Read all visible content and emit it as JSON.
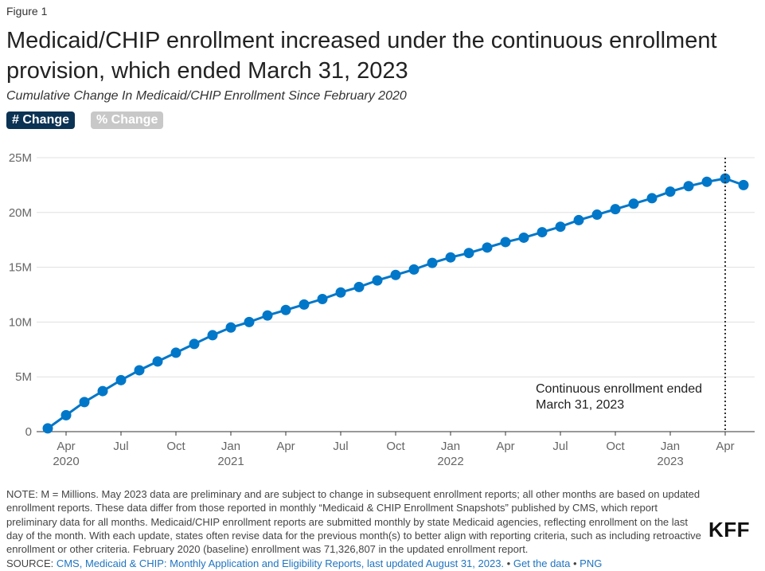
{
  "figure_label": "Figure 1",
  "title": "Medicaid/CHIP enrollment increased under the continuous enrollment provision, which ended March 31, 2023",
  "subtitle": "Cumulative Change In Medicaid/CHIP Enrollment Since February 2020",
  "toggles": {
    "count_label": "# Change",
    "percent_label": "% Change",
    "selected": "count"
  },
  "chart_data": {
    "type": "line",
    "x": [
      "2020-03",
      "2020-04",
      "2020-05",
      "2020-06",
      "2020-07",
      "2020-08",
      "2020-09",
      "2020-10",
      "2020-11",
      "2020-12",
      "2021-01",
      "2021-02",
      "2021-03",
      "2021-04",
      "2021-05",
      "2021-06",
      "2021-07",
      "2021-08",
      "2021-09",
      "2021-10",
      "2021-11",
      "2021-12",
      "2022-01",
      "2022-02",
      "2022-03",
      "2022-04",
      "2022-05",
      "2022-06",
      "2022-07",
      "2022-08",
      "2022-09",
      "2022-10",
      "2022-11",
      "2022-12",
      "2023-01",
      "2023-02",
      "2023-03",
      "2023-04",
      "2023-05"
    ],
    "series": [
      {
        "values": [
          0.3,
          1.5,
          2.7,
          3.7,
          4.7,
          5.6,
          6.4,
          7.2,
          8.0,
          8.8,
          9.5,
          10.0,
          10.6,
          11.1,
          11.6,
          12.1,
          12.7,
          13.2,
          13.8,
          14.3,
          14.8,
          15.4,
          15.9,
          16.3,
          16.8,
          17.3,
          17.7,
          18.2,
          18.7,
          19.3,
          19.8,
          20.3,
          20.8,
          21.3,
          21.9,
          22.4,
          22.8,
          23.1,
          22.5
        ]
      }
    ],
    "y_unit": "M",
    "ylim": [
      0,
      25
    ],
    "y_ticks": [
      "0",
      "5M",
      "10M",
      "15M",
      "20M",
      "25M"
    ],
    "x_ticks": [
      {
        "label": "Apr",
        "year": "2020",
        "x": "2020-04"
      },
      {
        "label": "Jul",
        "year": "",
        "x": "2020-07"
      },
      {
        "label": "Oct",
        "year": "",
        "x": "2020-10"
      },
      {
        "label": "Jan",
        "year": "2021",
        "x": "2021-01"
      },
      {
        "label": "Apr",
        "year": "",
        "x": "2021-04"
      },
      {
        "label": "Jul",
        "year": "",
        "x": "2021-07"
      },
      {
        "label": "Oct",
        "year": "",
        "x": "2021-10"
      },
      {
        "label": "Jan",
        "year": "2022",
        "x": "2022-01"
      },
      {
        "label": "Apr",
        "year": "",
        "x": "2022-04"
      },
      {
        "label": "Jul",
        "year": "",
        "x": "2022-07"
      },
      {
        "label": "Oct",
        "year": "",
        "x": "2022-10"
      },
      {
        "label": "Jan",
        "year": "2023",
        "x": "2023-01"
      },
      {
        "label": "Apr",
        "year": "",
        "x": "2023-04"
      }
    ],
    "annotation": {
      "line1": "Continuous enrollment ended",
      "line2": "March 31, 2023",
      "x": "2023-04"
    },
    "grid": "horizontal",
    "colors": {
      "line": "#0077c8",
      "grid": "#e0e0e0",
      "axis": "#333333",
      "marker_line": "#333333"
    }
  },
  "note": "NOTE: M = Millions. May 2023 data are preliminary and are subject to change in subsequent enrollment reports; all other months are based on updated enrollment reports. These data differ from those reported in monthly “Medicaid & CHIP Enrollment Snapshots” published by CMS, which report preliminary data for all months. Medicaid/CHIP enrollment reports are submitted monthly by state Medicaid agencies, reflecting enrollment on the last day of the month. With each update, states often revise data for the previous month(s) to better align with reporting criteria, such as including retroactive enrollment or other criteria. February 2020 (baseline) enrollment was 71,326,807 in the updated enrollment report.",
  "source": {
    "prefix": "SOURCE: ",
    "link_text": "CMS, Medicaid & CHIP: Monthly Application and Eligibility Reports, last updated August 31, 2023.",
    "sep1": " • ",
    "get_data": "Get the data",
    "sep2": " • ",
    "png": "PNG"
  },
  "logo": "KFF"
}
